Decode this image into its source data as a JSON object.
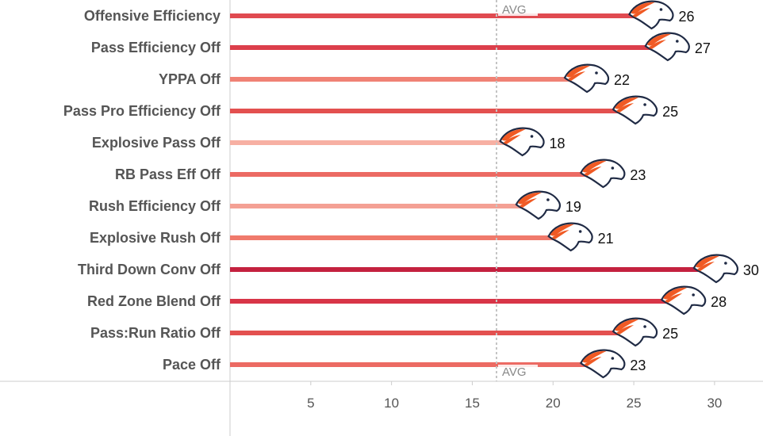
{
  "chart_data": {
    "type": "bar",
    "orientation": "horizontal",
    "categories": [
      "Offensive Efficiency",
      "Pass Efficiency Off",
      "YPPA Off",
      "Pass Pro Efficiency Off",
      "Explosive Pass Off",
      "RB Pass Eff Off",
      "Rush Efficiency Off",
      "Explosive Rush Off",
      "Third Down Conv Off",
      "Red Zone Blend Off",
      "Pass:Run Ratio Off",
      "Pace Off"
    ],
    "values": [
      26,
      27,
      22,
      25,
      18,
      23,
      19,
      21,
      30,
      28,
      25,
      23
    ],
    "colors": [
      "#e04a50",
      "#dc3f4b",
      "#f08275",
      "#e3504f",
      "#f7b0a3",
      "#ec6a63",
      "#f4a094",
      "#f07a6c",
      "#c4213f",
      "#d83547",
      "#e3504f",
      "#ec6a63"
    ],
    "xlim": [
      0,
      33
    ],
    "xticks": [
      5,
      10,
      15,
      20,
      25,
      30
    ],
    "reference_line": {
      "value": 16.5,
      "label": "AVG"
    },
    "marker_icon": "broncos-horse-head-logo",
    "grid": false
  }
}
